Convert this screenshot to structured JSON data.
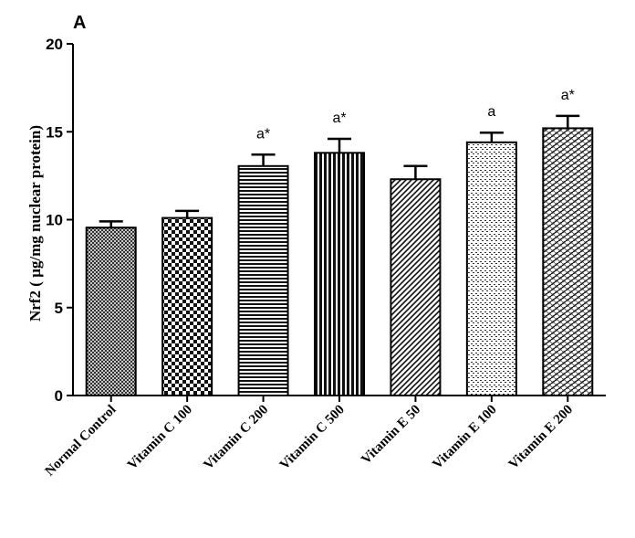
{
  "panel_label": "A",
  "chart_data": {
    "type": "bar",
    "title": "",
    "xlabel": "",
    "ylabel": "Nrf2 ( µg/mg nuclear protein)",
    "ylim": [
      0,
      20
    ],
    "yticks": [
      0,
      5,
      10,
      15,
      20
    ],
    "categories": [
      "Normal Control",
      "Vitamin C 100",
      "Vitamin C 200",
      "Vitamin C 500",
      "Vitamin E 50",
      "Vitamin E 100",
      "Vitamin E 200"
    ],
    "values": [
      9.55,
      10.1,
      13.05,
      13.8,
      12.3,
      14.4,
      15.2
    ],
    "errors": [
      0.35,
      0.4,
      0.65,
      0.8,
      0.75,
      0.55,
      0.7
    ],
    "annotations": [
      "",
      "",
      "a*",
      "a*",
      "",
      "a",
      "a*"
    ],
    "patterns": [
      "crosshatch-dense",
      "checker",
      "horizontal-lines",
      "vertical-lines",
      "diagonal-lines",
      "dotted",
      "brick"
    ],
    "grid": false,
    "legend": "none"
  }
}
